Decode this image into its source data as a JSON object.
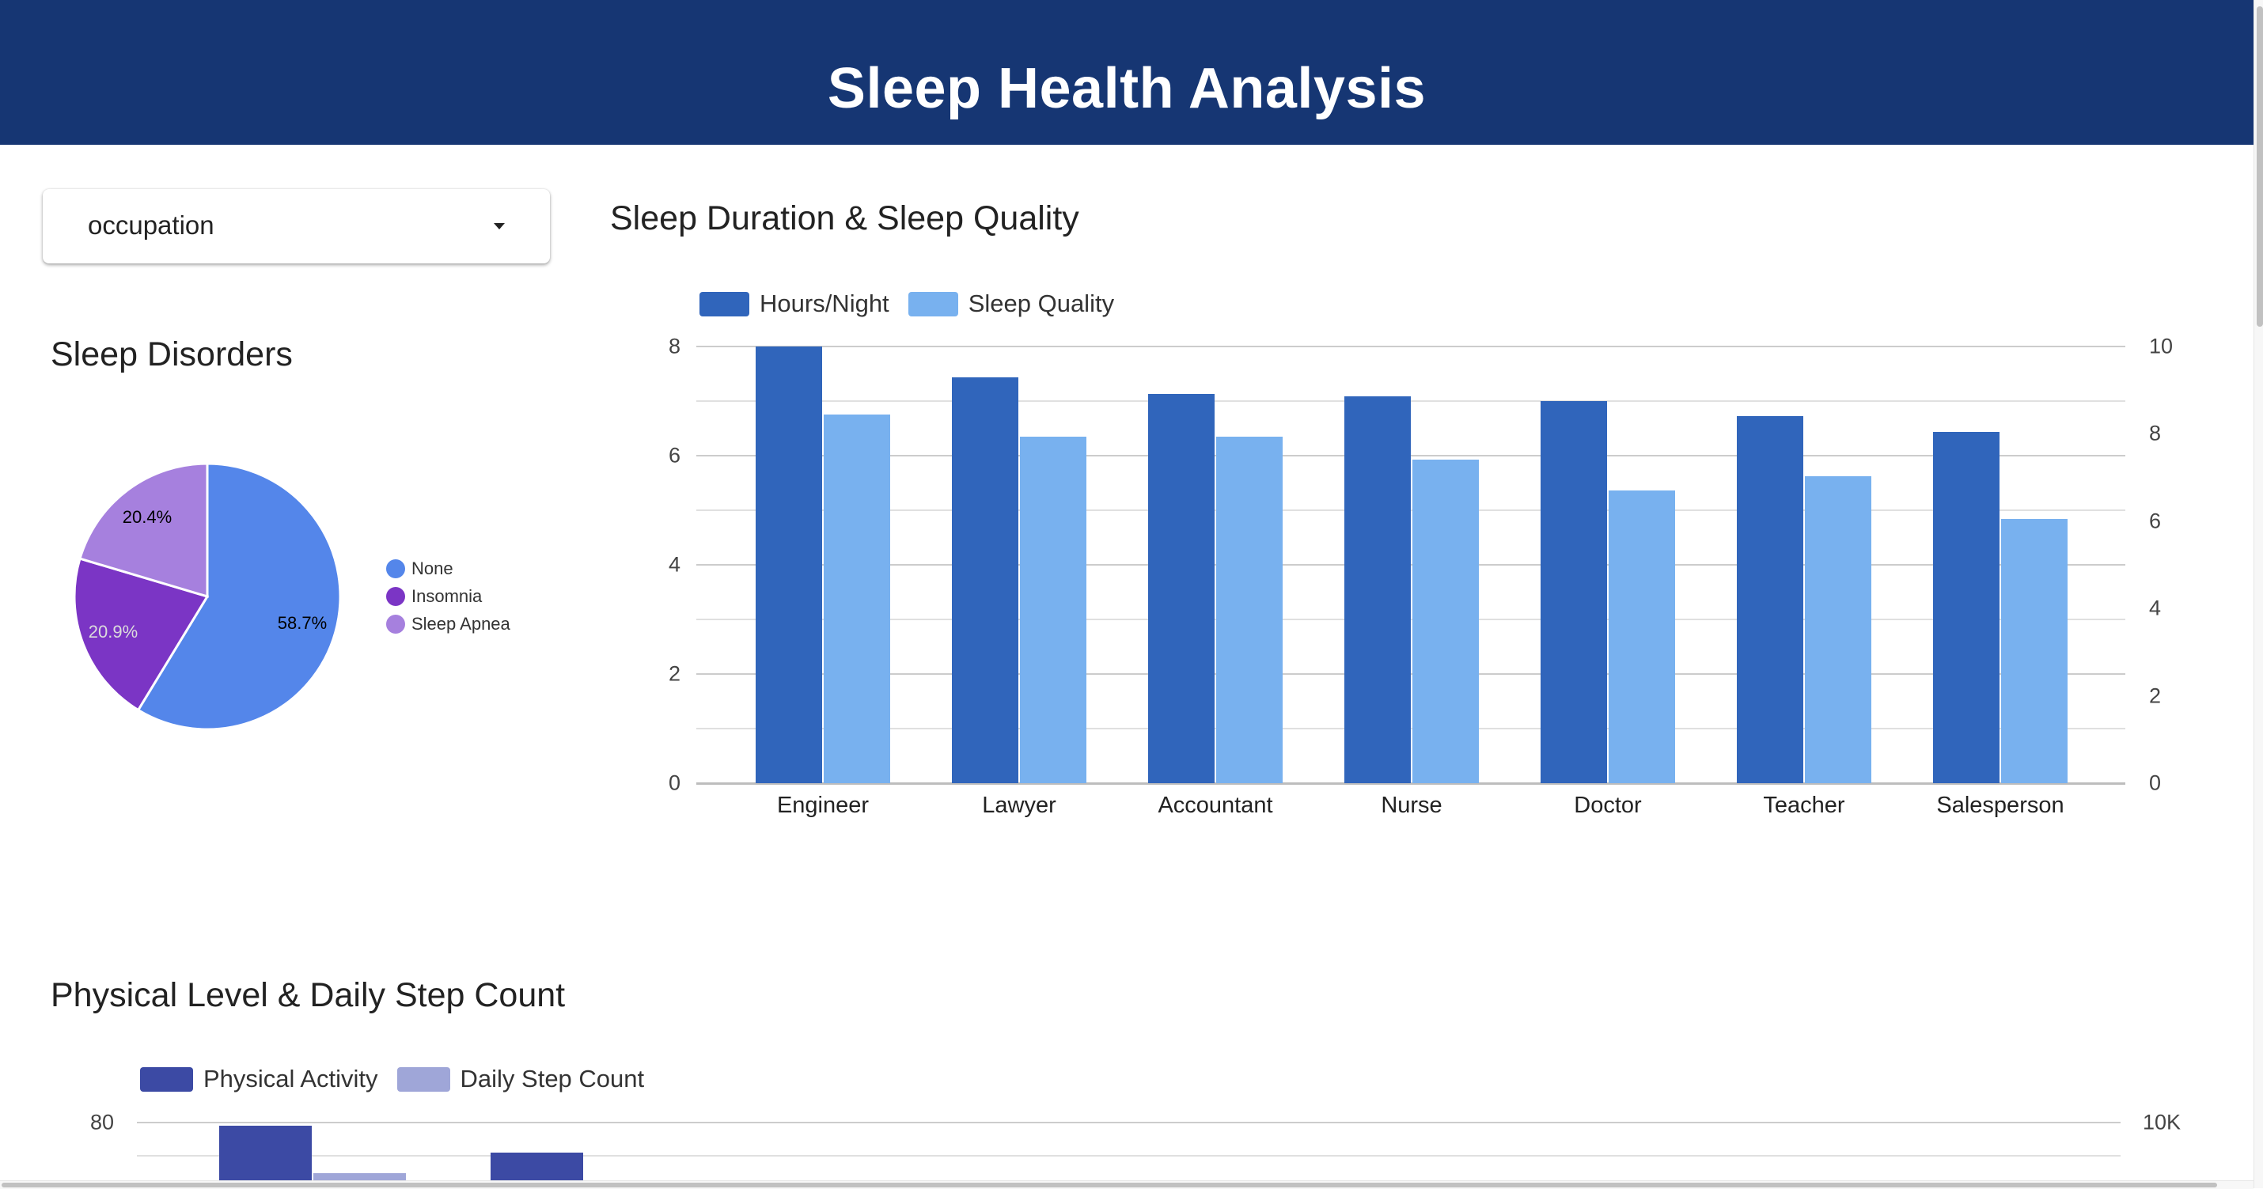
{
  "header": {
    "title": "Sleep Health Analysis",
    "background": "#163673"
  },
  "filter": {
    "selected": "occupation"
  },
  "sleep_disorders": {
    "title": "Sleep Disorders",
    "slices": [
      {
        "label": "None",
        "percent_label": "58.7%",
        "value": 58.7,
        "color": "#5486ea",
        "text_color": "#000000"
      },
      {
        "label": "Insomnia",
        "percent_label": "20.9%",
        "value": 20.9,
        "color": "#7b35c5",
        "text_color": "#dcdcdc"
      },
      {
        "label": "Sleep Apnea",
        "percent_label": "20.4%",
        "value": 20.4,
        "color": "#a680de",
        "text_color": "#000000"
      }
    ]
  },
  "sleep_chart": {
    "title": "Sleep Duration & Sleep Quality",
    "legend": [
      {
        "label": "Hours/Night",
        "color": "#3065bb"
      },
      {
        "label": "Sleep Quality",
        "color": "#78b1ef"
      }
    ],
    "left_ticks": [
      "8",
      "6",
      "4",
      "2",
      "0"
    ],
    "right_ticks": [
      "10",
      "8",
      "6",
      "4",
      "2",
      "0"
    ]
  },
  "activity_chart": {
    "title": "Physical Level & Daily Step Count",
    "legend": [
      {
        "label": "Physical Activity",
        "color": "#3c4aa4"
      },
      {
        "label": "Daily Step Count",
        "color": "#9fa6d8"
      }
    ],
    "left_ticks": [
      "80"
    ],
    "right_ticks": [
      "10K"
    ]
  },
  "chart_data": [
    {
      "type": "pie",
      "title": "Sleep Disorders",
      "categories": [
        "None",
        "Insomnia",
        "Sleep Apnea"
      ],
      "values": [
        58.7,
        20.9,
        20.4
      ],
      "legend_position": "right"
    },
    {
      "type": "bar",
      "title": "Sleep Duration & Sleep Quality",
      "categories": [
        "Engineer",
        "Lawyer",
        "Accountant",
        "Nurse",
        "Doctor",
        "Teacher",
        "Salesperson"
      ],
      "series": [
        {
          "name": "Hours/Night",
          "axis": "left",
          "values": [
            8.0,
            7.44,
            7.13,
            7.09,
            7.0,
            6.72,
            6.44
          ]
        },
        {
          "name": "Sleep Quality",
          "axis": "right",
          "values": [
            8.44,
            7.93,
            7.93,
            7.41,
            6.7,
            7.02,
            6.05
          ]
        }
      ],
      "ylim_left": [
        0,
        8
      ],
      "ylim_right": [
        0,
        10
      ],
      "left_ticks": [
        0,
        2,
        4,
        6,
        8
      ],
      "right_ticks": [
        0,
        2,
        4,
        6,
        8,
        10
      ],
      "grid": true,
      "legend_position": "top"
    },
    {
      "type": "bar",
      "title": "Physical Level & Daily Step Count",
      "categories": [],
      "series": [
        {
          "name": "Physical Activity",
          "axis": "left",
          "values": [
            77,
            50
          ]
        },
        {
          "name": "Daily Step Count",
          "axis": "right",
          "values": [
            null,
            null
          ]
        }
      ],
      "left_ticks_visible": [
        80
      ],
      "right_ticks_visible": [
        "10K"
      ],
      "grid": true,
      "legend_position": "top",
      "note": "chart partially cut off at bottom of viewport"
    }
  ]
}
